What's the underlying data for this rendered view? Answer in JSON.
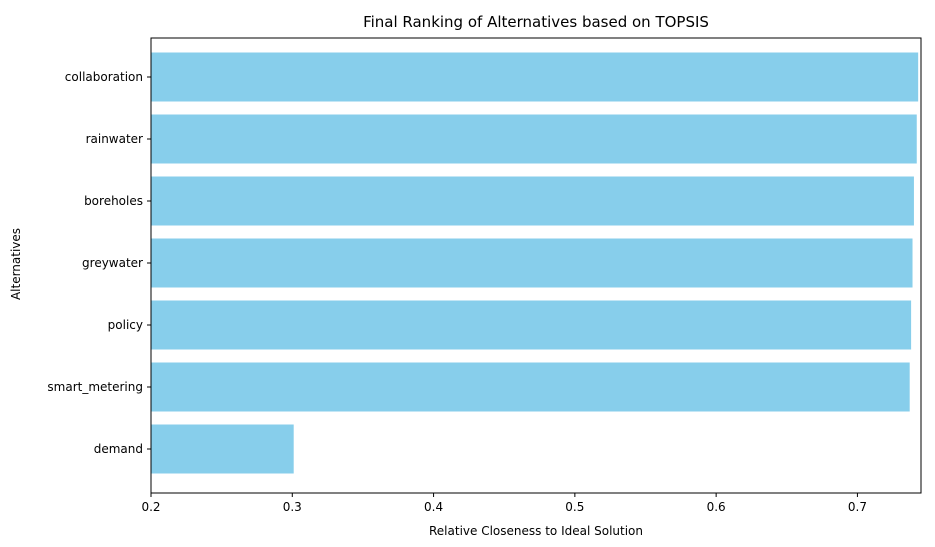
{
  "chart_data": {
    "type": "bar",
    "orientation": "horizontal",
    "title": "Final Ranking of Alternatives based on TOPSIS",
    "xlabel": "Relative Closeness to Ideal Solution",
    "ylabel": "Alternatives",
    "categories": [
      "collaboration",
      "rainwater",
      "boreholes",
      "greywater",
      "policy",
      "smart_metering",
      "demand"
    ],
    "values": [
      0.743,
      0.742,
      0.74,
      0.739,
      0.738,
      0.737,
      0.301
    ],
    "xlim": [
      0.2,
      0.745
    ],
    "xticks": [
      "0.2",
      "0.3",
      "0.4",
      "0.5",
      "0.6",
      "0.7"
    ],
    "bar_color": "#87ceeb",
    "grid": false
  }
}
